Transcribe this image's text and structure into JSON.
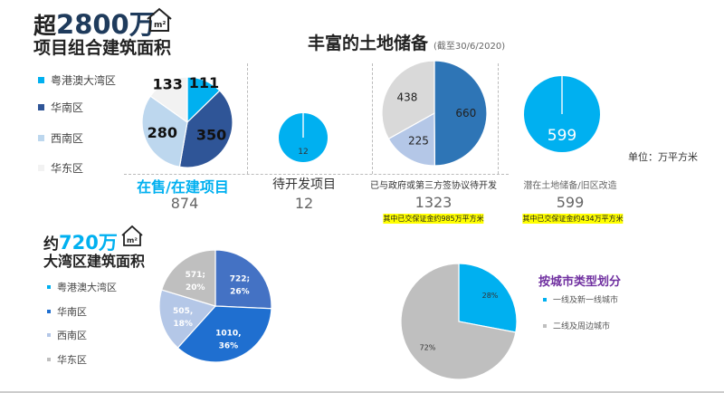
{
  "header": {
    "prefix": "超",
    "number": "2800万",
    "subtitle": "项目组合建筑面积",
    "unit_icon": "house-m2-icon"
  },
  "main_title": {
    "title": "丰富的土地储备",
    "date_note": "(截至30/6/2020)"
  },
  "unit_note": "单位：万平方米",
  "legend_top": [
    {
      "label": "粤港澳大湾区",
      "color": "#00b0f0"
    },
    {
      "label": "华南区",
      "color": "#2f5597"
    },
    {
      "label": "西南区",
      "color": "#bdd7ee"
    },
    {
      "label": "华东区",
      "color": "#f2f2f2"
    }
  ],
  "sections": [
    {
      "caption": "在售/在建项目",
      "total": "874",
      "note": ""
    },
    {
      "caption": "待开发项目",
      "total": "12",
      "note": ""
    },
    {
      "caption": "已与政府或第三方签协议待开发",
      "total": "1323",
      "note": "其中已交保证金约985万平方米"
    },
    {
      "caption": "潜在土地储备/旧区改造",
      "total": "599",
      "note": "其中已交保证金约434万平方米"
    }
  ],
  "bay": {
    "prefix": "约",
    "number": "720万",
    "subtitle": "大湾区建筑面积",
    "unit_icon": "house-m2-icon"
  },
  "legend_bottom": [
    {
      "label": "粤港澳大湾区",
      "color": "#00b0f0"
    },
    {
      "label": "华南区",
      "color": "#1f6fd0"
    },
    {
      "label": "西南区",
      "color": "#b4c7e7"
    },
    {
      "label": "华东区",
      "color": "#bfbfbf"
    }
  ],
  "city": {
    "title": "按城市类型划分",
    "legend": [
      {
        "label": "一线及新一线城市",
        "color": "#00b0f0"
      },
      {
        "label": "二线及周边城市",
        "color": "#bfbfbf"
      }
    ]
  },
  "chart_data": [
    {
      "type": "pie",
      "name": "在售/在建项目",
      "slices": [
        {
          "label": "粤港澳大湾区",
          "value": 111,
          "color": "#00b0f0",
          "text": "111"
        },
        {
          "label": "华南区",
          "value": 350,
          "color": "#2f5597",
          "text": "350"
        },
        {
          "label": "西南区",
          "value": 280,
          "color": "#bdd7ee",
          "text": "280"
        },
        {
          "label": "华东区",
          "value": 133,
          "color": "#f2f2f2",
          "text": "133"
        }
      ]
    },
    {
      "type": "pie",
      "name": "待开发项目",
      "slices": [
        {
          "label": "",
          "value": 12,
          "color": "#00b0f0",
          "text": "12"
        }
      ]
    },
    {
      "type": "pie",
      "name": "已与政府或第三方签协议待开发",
      "slices": [
        {
          "label": "",
          "value": 660,
          "color": "#2e75b6",
          "text": "660"
        },
        {
          "label": "",
          "value": 225,
          "color": "#b4c7e7",
          "text": "225"
        },
        {
          "label": "",
          "value": 438,
          "color": "#d9d9d9",
          "text": "438"
        }
      ]
    },
    {
      "type": "pie",
      "name": "潜在土地储备/旧区改造",
      "slices": [
        {
          "label": "",
          "value": 599,
          "color": "#00b0f0",
          "text": "599"
        }
      ]
    },
    {
      "type": "pie",
      "name": "大湾区建筑面积",
      "slices": [
        {
          "label": "",
          "value": 722,
          "color": "#4472c4",
          "text": "722;",
          "pct": "26%"
        },
        {
          "label": "",
          "value": 1010,
          "color": "#1f6fd0",
          "text": "1010,",
          "pct": "36%"
        },
        {
          "label": "",
          "value": 505,
          "color": "#b4c7e7",
          "text": "505,",
          "pct": "18%"
        },
        {
          "label": "",
          "value": 571,
          "color": "#bfbfbf",
          "text": "571;",
          "pct": "20%"
        }
      ]
    },
    {
      "type": "pie",
      "name": "按城市类型划分",
      "slices": [
        {
          "label": "一线及新一线城市",
          "value": 28,
          "color": "#00b0f0",
          "text": "28%"
        },
        {
          "label": "二线及周边城市",
          "value": 72,
          "color": "#bfbfbf",
          "text": "72%"
        }
      ]
    }
  ]
}
